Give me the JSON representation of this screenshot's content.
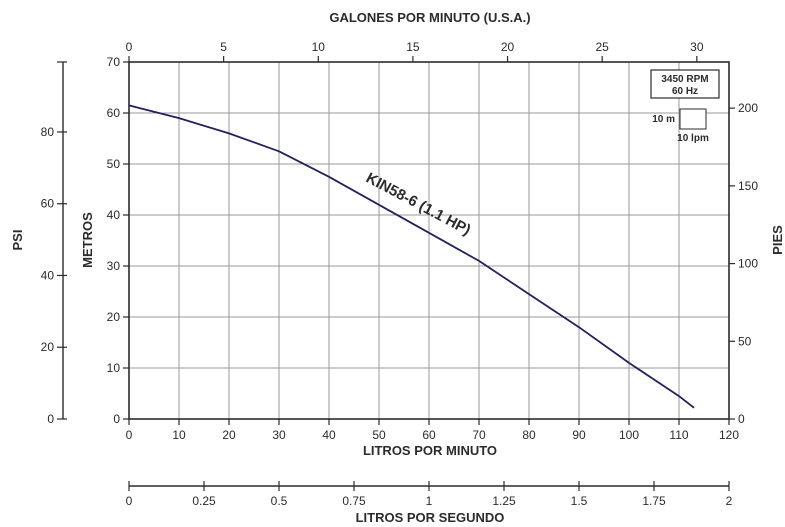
{
  "chart_data": {
    "type": "line",
    "title": "",
    "xlabel": "LITROS POR MINUTO",
    "ylabel": "METROS",
    "xlim": [
      0,
      120
    ],
    "ylim": [
      0,
      70
    ],
    "grid": true,
    "x_ticks": [
      "0",
      "10",
      "20",
      "30",
      "40",
      "50",
      "60",
      "70",
      "80",
      "90",
      "100",
      "110",
      "120"
    ],
    "y_ticks": [
      "0",
      "10",
      "20",
      "30",
      "40",
      "50",
      "60",
      "70"
    ],
    "series": [
      {
        "name": "KIN58-6 (1.1 HP)",
        "color": "#23205f",
        "x": [
          0,
          10,
          20,
          30,
          40,
          50,
          60,
          70,
          80,
          90,
          100,
          110,
          113
        ],
        "y": [
          61.5,
          59,
          56,
          52.5,
          47.5,
          42,
          36.5,
          31,
          24.5,
          18,
          11,
          4.5,
          2.2
        ]
      }
    ],
    "secondary_axes": {
      "top": {
        "label": "GALONES POR MINUTO (U.S.A.)",
        "range": [
          0,
          31.7
        ],
        "ticks": [
          "0",
          "5",
          "10",
          "15",
          "20",
          "25",
          "30"
        ]
      },
      "left_outer": {
        "label": "PSI",
        "range": [
          0,
          99.5
        ],
        "ticks": [
          "0",
          "20",
          "40",
          "60",
          "80"
        ]
      },
      "right": {
        "label": "PIES",
        "range": [
          0,
          229.7
        ],
        "ticks": [
          "0",
          "50",
          "100",
          "150",
          "200"
        ]
      },
      "bottom_outer": {
        "label": "LITROS POR SEGUNDO",
        "range": [
          0,
          2
        ],
        "ticks": [
          "0",
          "0.25",
          "0.5",
          "0.75",
          "1",
          "1.25",
          "1.5",
          "1.75",
          "2"
        ]
      }
    },
    "info_box": {
      "speed": "3450 RPM",
      "frequency": "60 Hz",
      "scale_m": "10 m",
      "scale_lpm": "10 lpm"
    }
  }
}
